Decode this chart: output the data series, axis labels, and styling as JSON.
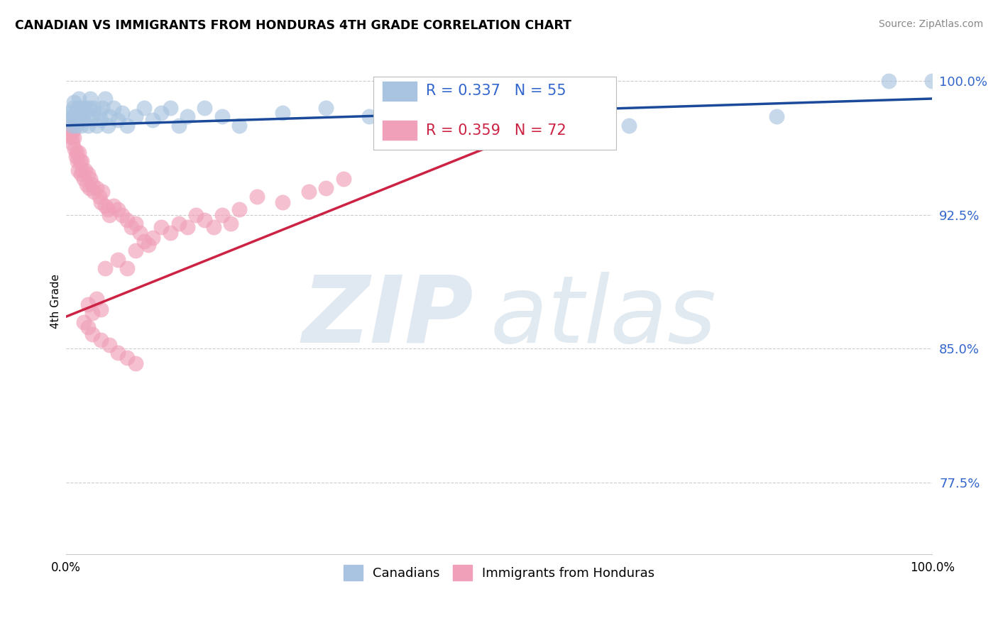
{
  "title": "CANADIAN VS IMMIGRANTS FROM HONDURAS 4TH GRADE CORRELATION CHART",
  "source": "Source: ZipAtlas.com",
  "ylabel": "4th Grade",
  "yticks": [
    0.775,
    0.85,
    0.925,
    1.0
  ],
  "ytick_labels": [
    "77.5%",
    "85.0%",
    "92.5%",
    "100.0%"
  ],
  "xlim": [
    0.0,
    1.0
  ],
  "ylim": [
    0.735,
    1.018
  ],
  "legend_blue_r": "R = 0.337",
  "legend_blue_n": "N = 55",
  "legend_pink_r": "R = 0.359",
  "legend_pink_n": "N = 72",
  "legend_blue_label": "Canadians",
  "legend_pink_label": "Immigrants from Honduras",
  "blue_color": "#a8c4e0",
  "blue_line_color": "#1a4a99",
  "pink_color": "#f0a0b8",
  "pink_line_color": "#cc2244",
  "canadians_x": [
    0.003,
    0.005,
    0.006,
    0.007,
    0.008,
    0.009,
    0.01,
    0.011,
    0.012,
    0.013,
    0.014,
    0.015,
    0.016,
    0.017,
    0.018,
    0.019,
    0.02,
    0.022,
    0.024,
    0.025,
    0.027,
    0.028,
    0.03,
    0.032,
    0.035,
    0.038,
    0.04,
    0.042,
    0.045,
    0.048,
    0.05,
    0.055,
    0.06,
    0.065,
    0.07,
    0.08,
    0.09,
    0.1,
    0.11,
    0.12,
    0.13,
    0.14,
    0.16,
    0.18,
    0.2,
    0.25,
    0.3,
    0.35,
    0.4,
    0.45,
    0.5,
    0.65,
    0.82,
    0.95,
    1.0
  ],
  "canadians_y": [
    0.978,
    0.982,
    0.98,
    0.975,
    0.985,
    0.988,
    0.98,
    0.975,
    0.982,
    0.978,
    0.985,
    0.99,
    0.98,
    0.975,
    0.985,
    0.978,
    0.982,
    0.985,
    0.98,
    0.975,
    0.985,
    0.99,
    0.98,
    0.985,
    0.975,
    0.982,
    0.978,
    0.985,
    0.99,
    0.975,
    0.98,
    0.985,
    0.978,
    0.982,
    0.975,
    0.98,
    0.985,
    0.978,
    0.982,
    0.985,
    0.975,
    0.98,
    0.985,
    0.98,
    0.975,
    0.982,
    0.985,
    0.98,
    0.985,
    0.978,
    0.982,
    0.975,
    0.98,
    1.0,
    1.0
  ],
  "honduras_x": [
    0.003,
    0.005,
    0.006,
    0.007,
    0.008,
    0.009,
    0.01,
    0.011,
    0.012,
    0.013,
    0.014,
    0.015,
    0.016,
    0.017,
    0.018,
    0.019,
    0.02,
    0.022,
    0.024,
    0.025,
    0.027,
    0.028,
    0.03,
    0.032,
    0.035,
    0.038,
    0.04,
    0.042,
    0.045,
    0.048,
    0.05,
    0.055,
    0.06,
    0.065,
    0.07,
    0.075,
    0.08,
    0.085,
    0.09,
    0.095,
    0.1,
    0.11,
    0.12,
    0.13,
    0.14,
    0.15,
    0.16,
    0.17,
    0.18,
    0.19,
    0.2,
    0.22,
    0.25,
    0.28,
    0.3,
    0.32,
    0.045,
    0.06,
    0.07,
    0.08,
    0.025,
    0.03,
    0.035,
    0.04,
    0.02,
    0.025,
    0.03,
    0.04,
    0.05,
    0.06,
    0.07,
    0.08
  ],
  "honduras_y": [
    0.975,
    0.97,
    0.968,
    0.965,
    0.972,
    0.968,
    0.962,
    0.958,
    0.96,
    0.955,
    0.95,
    0.96,
    0.955,
    0.948,
    0.955,
    0.95,
    0.945,
    0.95,
    0.942,
    0.948,
    0.94,
    0.945,
    0.942,
    0.938,
    0.94,
    0.935,
    0.932,
    0.938,
    0.93,
    0.928,
    0.925,
    0.93,
    0.928,
    0.925,
    0.922,
    0.918,
    0.92,
    0.915,
    0.91,
    0.908,
    0.912,
    0.918,
    0.915,
    0.92,
    0.918,
    0.925,
    0.922,
    0.918,
    0.925,
    0.92,
    0.928,
    0.935,
    0.932,
    0.938,
    0.94,
    0.945,
    0.895,
    0.9,
    0.895,
    0.905,
    0.875,
    0.87,
    0.878,
    0.872,
    0.865,
    0.862,
    0.858,
    0.855,
    0.852,
    0.848,
    0.845,
    0.842
  ]
}
